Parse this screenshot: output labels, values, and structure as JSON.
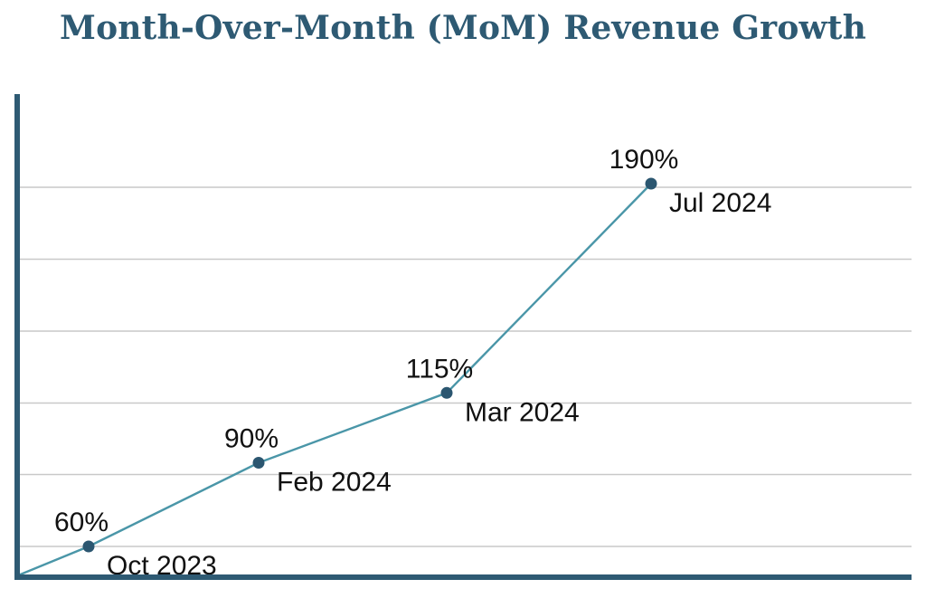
{
  "chart_data": {
    "type": "line",
    "title": "Month-Over-Month (MoM) Revenue Growth",
    "xlabel": "",
    "ylabel": "",
    "x": [
      "Oct 2023",
      "Feb 2024",
      "Mar 2024",
      "Jul 2024"
    ],
    "series": [
      {
        "values": [
          60,
          90,
          115,
          190
        ],
        "value_labels": [
          "60%",
          "90%",
          "115%",
          "190%"
        ]
      }
    ],
    "ylim": [
      35,
      195
    ],
    "grid": true,
    "legend": "none",
    "colors": {
      "title": "#2e5a73",
      "axis": "#2e5a73",
      "line": "#4a96a8",
      "marker": "#2b5670",
      "grid": "#c9c9c9"
    }
  }
}
